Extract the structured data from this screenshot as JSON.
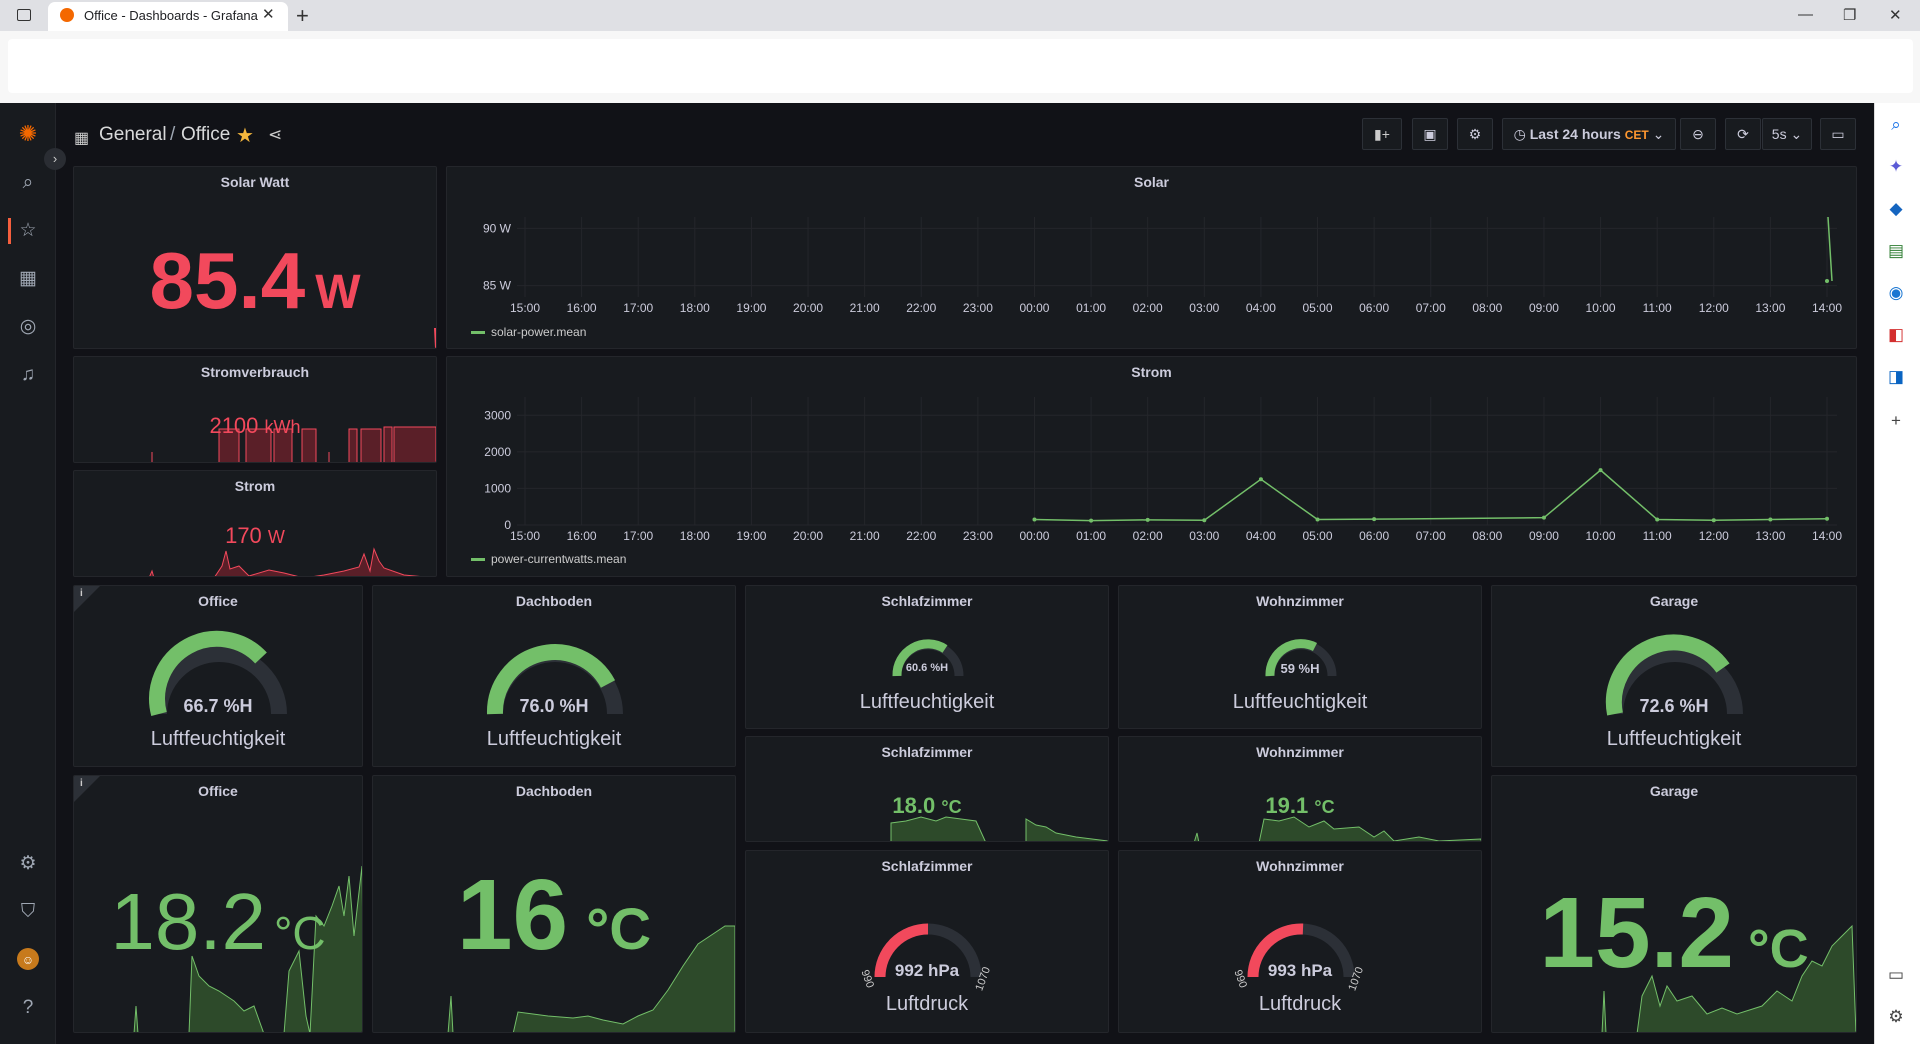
{
  "browser": {
    "tab_title": "Office - Dashboards - Grafana",
    "new_tab": "+",
    "close": "✕",
    "win_minimize": "—",
    "win_restore": "❐",
    "win_close": "✕"
  },
  "toolbar": {
    "breadcrumb_root": "General",
    "breadcrumb_sep": "/",
    "breadcrumb_page": "Office",
    "time_range": "Last 24 hours",
    "timezone": "CET",
    "refresh_interval": "5s"
  },
  "panels": {
    "solar_watt": {
      "title": "Solar Watt",
      "value": "85.4",
      "unit": "W"
    },
    "stromverbrauch": {
      "title": "Stromverbrauch",
      "value": "2100",
      "unit": "kWh"
    },
    "strom_stat": {
      "title": "Strom",
      "value": "170",
      "unit": "W"
    },
    "solar_graph": {
      "title": "Solar",
      "legend": "solar-power.mean"
    },
    "strom_graph": {
      "title": "Strom",
      "legend": "power-currentwatts.mean"
    },
    "office_hum": {
      "title": "Office",
      "value": "66.7 %H",
      "label": "Luftfeuchtigkeit",
      "info": "i"
    },
    "dachboden_hum": {
      "title": "Dachboden",
      "value": "76.0 %H",
      "label": "Luftfeuchtigkeit"
    },
    "schlaf_hum": {
      "title": "Schlafzimmer",
      "value": "60.6 %H",
      "label": "Luftfeuchtigkeit"
    },
    "wohn_hum": {
      "title": "Wohnzimmer",
      "value": "59 %H",
      "label": "Luftfeuchtigkeit"
    },
    "garage_hum": {
      "title": "Garage",
      "value": "72.6 %H",
      "label": "Luftfeuchtigkeit"
    },
    "schlaf_temp": {
      "title": "Schlafzimmer",
      "value": "18.0",
      "unit": "°C"
    },
    "wohn_temp": {
      "title": "Wohnzimmer",
      "value": "19.1",
      "unit": "°C"
    },
    "office_temp": {
      "title": "Office",
      "value": "18.2",
      "unit": "°C",
      "info": "i"
    },
    "dachboden_temp": {
      "title": "Dachboden",
      "value": "16",
      "unit": "°C"
    },
    "garage_temp": {
      "title": "Garage",
      "value": "15.2",
      "unit": "°C"
    },
    "schlaf_press": {
      "title": "Schlafzimmer",
      "value": "992 hPa",
      "label": "Luftdruck",
      "min": "990",
      "max": "1070"
    },
    "wohn_press": {
      "title": "Wohnzimmer",
      "value": "993 hPa",
      "label": "Luftdruck",
      "min": "990",
      "max": "1070"
    }
  },
  "chart_data": [
    {
      "type": "line",
      "title": "Solar",
      "x": [
        "15:00",
        "16:00",
        "17:00",
        "18:00",
        "19:00",
        "20:00",
        "21:00",
        "22:00",
        "23:00",
        "00:00",
        "01:00",
        "02:00",
        "03:00",
        "04:00",
        "05:00",
        "06:00",
        "07:00",
        "08:00",
        "09:00",
        "10:00",
        "11:00",
        "12:00",
        "13:00",
        "14:00"
      ],
      "y_ticks": [
        "90 W",
        "85 W"
      ],
      "ylim": [
        84,
        91
      ],
      "series": [
        {
          "name": "solar-power.mean",
          "color": "#73bf69",
          "values": [
            null,
            null,
            null,
            null,
            null,
            null,
            null,
            null,
            null,
            null,
            null,
            null,
            null,
            null,
            null,
            null,
            null,
            null,
            null,
            null,
            null,
            null,
            null,
            85.4
          ],
          "spike": [
            91,
            85.4
          ]
        }
      ]
    },
    {
      "type": "line",
      "title": "Strom",
      "x": [
        "15:00",
        "16:00",
        "17:00",
        "18:00",
        "19:00",
        "20:00",
        "21:00",
        "22:00",
        "23:00",
        "00:00",
        "01:00",
        "02:00",
        "03:00",
        "04:00",
        "05:00",
        "06:00",
        "07:00",
        "08:00",
        "09:00",
        "10:00",
        "11:00",
        "12:00",
        "13:00",
        "14:00"
      ],
      "y_ticks": [
        "3000",
        "2000",
        "1000",
        "0"
      ],
      "ylim": [
        0,
        3500
      ],
      "series": [
        {
          "name": "power-currentwatts.mean",
          "color": "#73bf69",
          "values": [
            null,
            null,
            null,
            null,
            null,
            null,
            null,
            null,
            null,
            150,
            120,
            140,
            130,
            1250,
            150,
            160,
            null,
            null,
            200,
            1500,
            150,
            130,
            150,
            170
          ]
        }
      ]
    }
  ],
  "colors": {
    "accent_red": "#f2495c",
    "accent_green": "#73bf69",
    "bg": "#111217",
    "panel": "#181b1f"
  },
  "icons": {
    "nav": [
      "grafana-logo-icon",
      "search-icon",
      "star-icon",
      "dashboards-icon",
      "explore-icon",
      "alert-bell-icon",
      "settings-icon",
      "shield-icon",
      "avatar",
      "help-icon"
    ]
  }
}
